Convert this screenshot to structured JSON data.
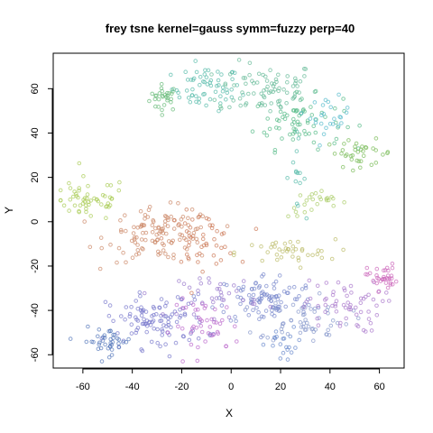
{
  "chart_data": {
    "type": "scatter",
    "title": "frey tsne kernel=gauss symm=fuzzy perp=40",
    "xlabel": "X",
    "ylabel": "Y",
    "xlim": [
      -72,
      70
    ],
    "ylim": [
      -66,
      76
    ],
    "xticks": [
      -60,
      -40,
      -20,
      0,
      20,
      40,
      60
    ],
    "yticks": [
      -60,
      -40,
      -20,
      0,
      20,
      40,
      60
    ],
    "grid": false,
    "legend": "none",
    "point_style": "open circle, semi-transparent, colored by point order (rainbow)",
    "clusters": [
      {
        "x": -27,
        "y": 56,
        "sx": 3,
        "sy": 3,
        "n": 30,
        "color": "#66bb77"
      },
      {
        "x": -10,
        "y": 60,
        "sx": 7,
        "sy": 5,
        "n": 60,
        "color": "#55bbaa"
      },
      {
        "x": 15,
        "y": 60,
        "sx": 10,
        "sy": 6,
        "n": 80,
        "color": "#66bb99"
      },
      {
        "x": 27,
        "y": 45,
        "sx": 9,
        "sy": 6,
        "n": 70,
        "color": "#55bb88"
      },
      {
        "x": 40,
        "y": 48,
        "sx": 4,
        "sy": 4,
        "n": 25,
        "color": "#55bbcc"
      },
      {
        "x": 52,
        "y": 31,
        "sx": 7,
        "sy": 3,
        "n": 35,
        "color": "#77bb55"
      },
      {
        "x": 26,
        "y": 22,
        "sx": 2,
        "sy": 8,
        "n": 15,
        "color": "#55bbaa"
      },
      {
        "x": 35,
        "y": 8,
        "sx": 6,
        "sy": 3,
        "n": 25,
        "color": "#aacc66"
      },
      {
        "x": -58,
        "y": 10,
        "sx": 8,
        "sy": 5,
        "n": 55,
        "color": "#aacc55"
      },
      {
        "x": -28,
        "y": -6,
        "sx": 11,
        "sy": 6,
        "n": 120,
        "color": "#cc8866"
      },
      {
        "x": -12,
        "y": -8,
        "sx": 7,
        "sy": 6,
        "n": 45,
        "color": "#cc7755"
      },
      {
        "x": 22,
        "y": -14,
        "sx": 10,
        "sy": 3,
        "n": 40,
        "color": "#bbbb66"
      },
      {
        "x": 14,
        "y": -35,
        "sx": 10,
        "sy": 6,
        "n": 100,
        "color": "#7788cc"
      },
      {
        "x": 30,
        "y": -44,
        "sx": 9,
        "sy": 5,
        "n": 55,
        "color": "#8899cc"
      },
      {
        "x": 45,
        "y": -38,
        "sx": 8,
        "sy": 6,
        "n": 60,
        "color": "#aa77cc"
      },
      {
        "x": 61,
        "y": -25,
        "sx": 3,
        "sy": 3,
        "n": 35,
        "color": "#cc66bb"
      },
      {
        "x": 22,
        "y": -56,
        "sx": 4,
        "sy": 4,
        "n": 20,
        "color": "#6688cc"
      },
      {
        "x": -30,
        "y": -45,
        "sx": 10,
        "sy": 6,
        "n": 110,
        "color": "#7777cc"
      },
      {
        "x": -50,
        "y": -54,
        "sx": 5,
        "sy": 3,
        "n": 40,
        "color": "#5577bb"
      },
      {
        "x": -10,
        "y": -47,
        "sx": 7,
        "sy": 6,
        "n": 45,
        "color": "#bb66cc"
      },
      {
        "x": -5,
        "y": -33,
        "sx": 8,
        "sy": 5,
        "n": 35,
        "color": "#9977cc"
      }
    ]
  }
}
